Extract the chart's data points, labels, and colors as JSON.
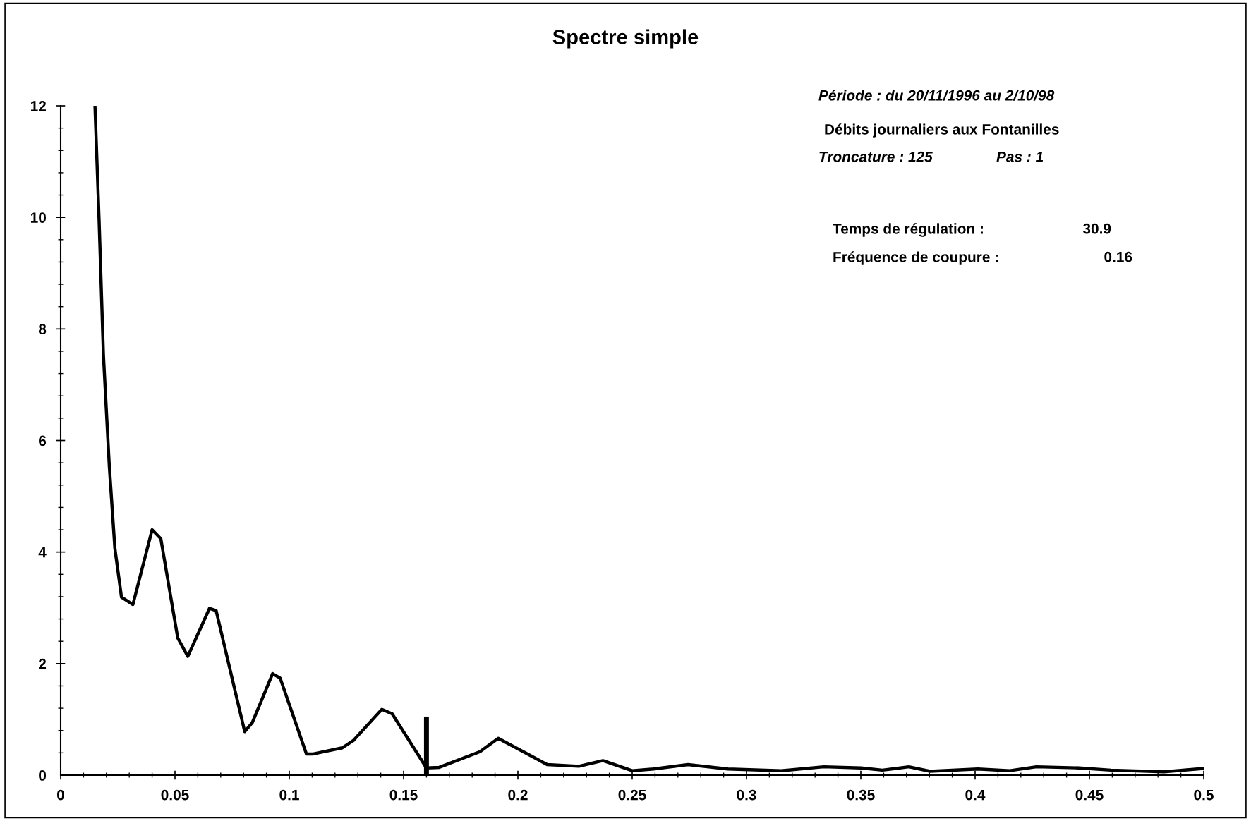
{
  "chart_data": {
    "type": "line",
    "title": "Spectre simple",
    "annotations": [
      "Période : du 20/11/1996 au 2/10/98",
      "Débits journaliers aux Fontanilles",
      "Troncature : 125",
      "Pas : 1",
      "Temps de régulation :",
      "30.9",
      "Fréquence de coupure :",
      "0.16"
    ],
    "series": [
      {
        "color": "#000000",
        "x": [
          0.015,
          0.0168,
          0.0187,
          0.0213,
          0.0237,
          0.0266,
          0.0316,
          0.04,
          0.0438,
          0.0512,
          0.0556,
          0.0651,
          0.068,
          0.0805,
          0.0838,
          0.0927,
          0.096,
          0.1075,
          0.1105,
          0.1232,
          0.128,
          0.1405,
          0.145,
          0.16,
          0.1656,
          0.1834,
          0.1914,
          0.2128,
          0.2267,
          0.2372,
          0.25,
          0.2593,
          0.2744,
          0.2919,
          0.3152,
          0.3338,
          0.3501,
          0.3594,
          0.371,
          0.3803,
          0.4012,
          0.4152,
          0.4268,
          0.4454,
          0.4594,
          0.4826,
          0.5
        ],
        "values": [
          12,
          9.95,
          7.53,
          5.52,
          4.07,
          3.19,
          3.06,
          4.4,
          4.24,
          2.46,
          2.13,
          2.99,
          2.95,
          0.78,
          0.94,
          1.82,
          1.74,
          0.38,
          0.38,
          0.49,
          0.62,
          1.18,
          1.1,
          0.13,
          0.14,
          0.42,
          0.66,
          0.19,
          0.16,
          0.26,
          0.08,
          0.11,
          0.19,
          0.11,
          0.08,
          0.15,
          0.13,
          0.09,
          0.15,
          0.07,
          0.11,
          0.08,
          0.15,
          0.13,
          0.09,
          0.06,
          0.12
        ]
      },
      {
        "color": "#000000",
        "x": [
          0.16,
          0.16
        ],
        "values": [
          0,
          1.05
        ]
      }
    ],
    "xlim": [
      0,
      0.5
    ],
    "xticks": [
      {
        "value": 0,
        "label": "0"
      },
      0.05,
      0.1,
      0.15,
      0.2,
      0.25,
      0.3,
      0.35,
      0.4,
      0.45,
      0.5
    ],
    "ylim": [
      0,
      12
    ],
    "yticks": [
      0,
      2,
      4,
      6,
      8,
      10,
      12
    ],
    "grid": false,
    "marker": "none",
    "line_style": "solid"
  }
}
